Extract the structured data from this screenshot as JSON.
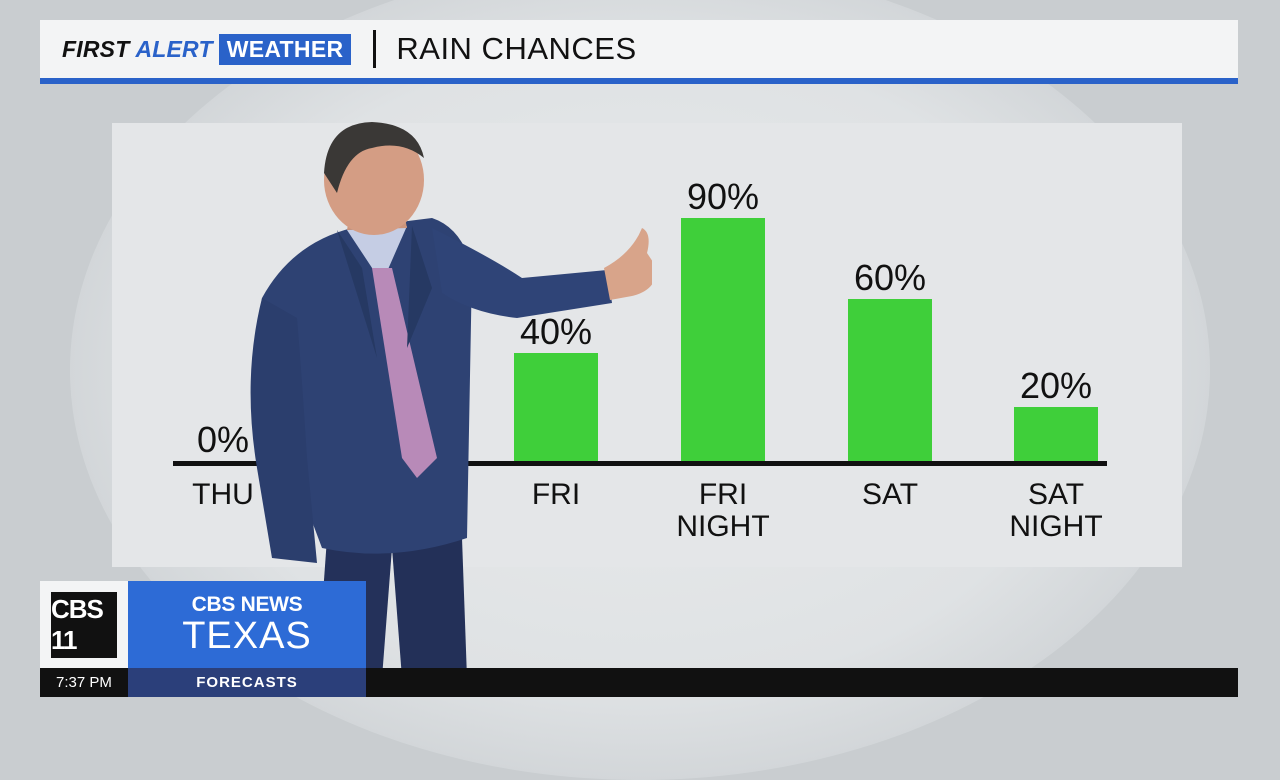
{
  "header": {
    "brand_first": "FIRST",
    "brand_alert": "ALERT",
    "brand_weather": "WEATHER",
    "title": "RAIN CHANCES"
  },
  "chart_data": {
    "type": "bar",
    "title": "RAIN CHANCES",
    "categories": [
      "THU",
      "FRI",
      "FRI NIGHT",
      "SAT",
      "SAT NIGHT"
    ],
    "category_lines": [
      [
        "THU"
      ],
      [
        "FRI"
      ],
      [
        "FRI",
        "NIGHT"
      ],
      [
        "SAT"
      ],
      [
        "SAT",
        "NIGHT"
      ]
    ],
    "values": [
      0,
      40,
      90,
      60,
      20
    ],
    "value_labels": [
      "0%",
      "40%",
      "90%",
      "60%",
      "20%"
    ],
    "unit": "%",
    "ylim": [
      0,
      100
    ],
    "grid": false,
    "bar_color": "#3fcf3a"
  },
  "branding": {
    "station_logo": "CBS 11",
    "network": "CBS NEWS",
    "region": "TEXAS"
  },
  "ticker": {
    "time": "7:37 PM",
    "segment": "FORECASTS"
  },
  "colors": {
    "accent": "#2a62c9",
    "bar": "#3fcf3a"
  }
}
